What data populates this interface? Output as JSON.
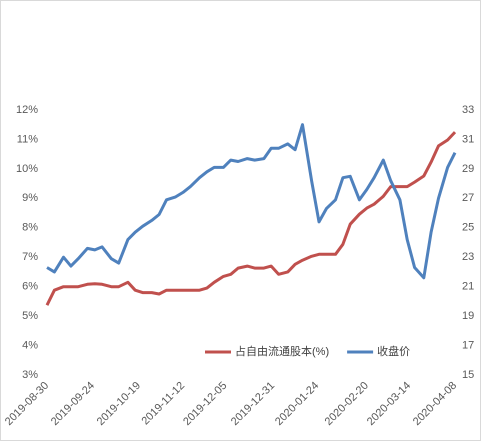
{
  "chart_data": {
    "type": "line",
    "x": [
      "2019-08-30",
      "2019-09-03",
      "2019-09-08",
      "2019-09-12",
      "2019-09-16",
      "2019-09-21",
      "2019-09-25",
      "2019-09-29",
      "2019-10-04",
      "2019-10-08",
      "2019-10-13",
      "2019-10-17",
      "2019-10-21",
      "2019-10-26",
      "2019-10-30",
      "2019-11-03",
      "2019-11-08",
      "2019-11-12",
      "2019-11-16",
      "2019-11-21",
      "2019-11-25",
      "2019-11-29",
      "2019-12-04",
      "2019-12-08",
      "2019-12-12",
      "2019-12-17",
      "2019-12-21",
      "2019-12-26",
      "2019-12-30",
      "2020-01-03",
      "2020-01-08",
      "2020-01-12",
      "2020-01-16",
      "2020-01-21",
      "2020-01-25",
      "2020-01-29",
      "2020-02-03",
      "2020-02-07",
      "2020-02-11",
      "2020-02-16",
      "2020-02-20",
      "2020-02-24",
      "2020-02-29",
      "2020-03-04",
      "2020-03-09",
      "2020-03-13",
      "2020-03-17",
      "2020-03-22",
      "2020-03-26",
      "2020-03-30",
      "2020-04-04",
      "2020-04-08"
    ],
    "xlim": [
      "2019-08-30",
      "2020-04-08"
    ],
    "xticks": [
      "2019-08-30",
      "2019-09-24",
      "2019-10-19",
      "2019-11-12",
      "2019-12-05",
      "2019-12-31",
      "2020-01-24",
      "2020-02-20",
      "2020-03-14",
      "2020-04-08"
    ],
    "ylim": [
      3,
      12
    ],
    "yticks": [
      {
        "value": 3,
        "label": "3%"
      },
      {
        "value": 4,
        "label": "4%"
      },
      {
        "value": 5,
        "label": "5%"
      },
      {
        "value": 6,
        "label": "6%"
      },
      {
        "value": 7,
        "label": "7%"
      },
      {
        "value": 8,
        "label": "8%"
      },
      {
        "value": 9,
        "label": "9%"
      },
      {
        "value": 10,
        "label": "10%"
      },
      {
        "value": 11,
        "label": "11%"
      },
      {
        "value": 12,
        "label": "12%"
      }
    ],
    "y2lim": [
      15,
      33
    ],
    "y2ticks": [
      15,
      17,
      19,
      21,
      23,
      25,
      27,
      29,
      31,
      33
    ],
    "legend": "bottom-right",
    "series": [
      {
        "name": "占自由流通股本(%)",
        "color": "#c0504d",
        "axis": "y",
        "values": [
          5.37,
          5.88,
          6.0,
          6.0,
          6.0,
          6.08,
          6.1,
          6.08,
          6.0,
          6.0,
          6.15,
          5.88,
          5.8,
          5.8,
          5.75,
          5.88,
          5.88,
          5.88,
          5.88,
          5.88,
          5.95,
          6.15,
          6.35,
          6.42,
          6.63,
          6.7,
          6.63,
          6.63,
          6.7,
          6.42,
          6.5,
          6.76,
          6.9,
          7.03,
          7.1,
          7.1,
          7.1,
          7.44,
          8.12,
          8.46,
          8.67,
          8.8,
          9.07,
          9.4,
          9.4,
          9.4,
          9.55,
          9.76,
          10.23,
          10.78,
          10.98,
          11.25
        ]
      },
      {
        "name": "收盘价",
        "color": "#4f81bd",
        "axis": "y2",
        "values": [
          22.3,
          22.0,
          23.0,
          22.4,
          22.9,
          23.6,
          23.5,
          23.7,
          22.9,
          22.6,
          24.2,
          24.7,
          25.1,
          25.5,
          25.9,
          26.9,
          27.1,
          27.4,
          27.8,
          28.4,
          28.8,
          29.1,
          29.1,
          29.6,
          29.5,
          29.7,
          29.6,
          29.7,
          30.4,
          30.4,
          30.7,
          30.3,
          32.0,
          28.2,
          25.4,
          26.3,
          26.9,
          28.4,
          28.5,
          26.9,
          27.6,
          28.4,
          29.6,
          28.2,
          26.9,
          24.2,
          22.3,
          21.6,
          24.7,
          27.0,
          29.1,
          30.1
        ]
      }
    ]
  }
}
